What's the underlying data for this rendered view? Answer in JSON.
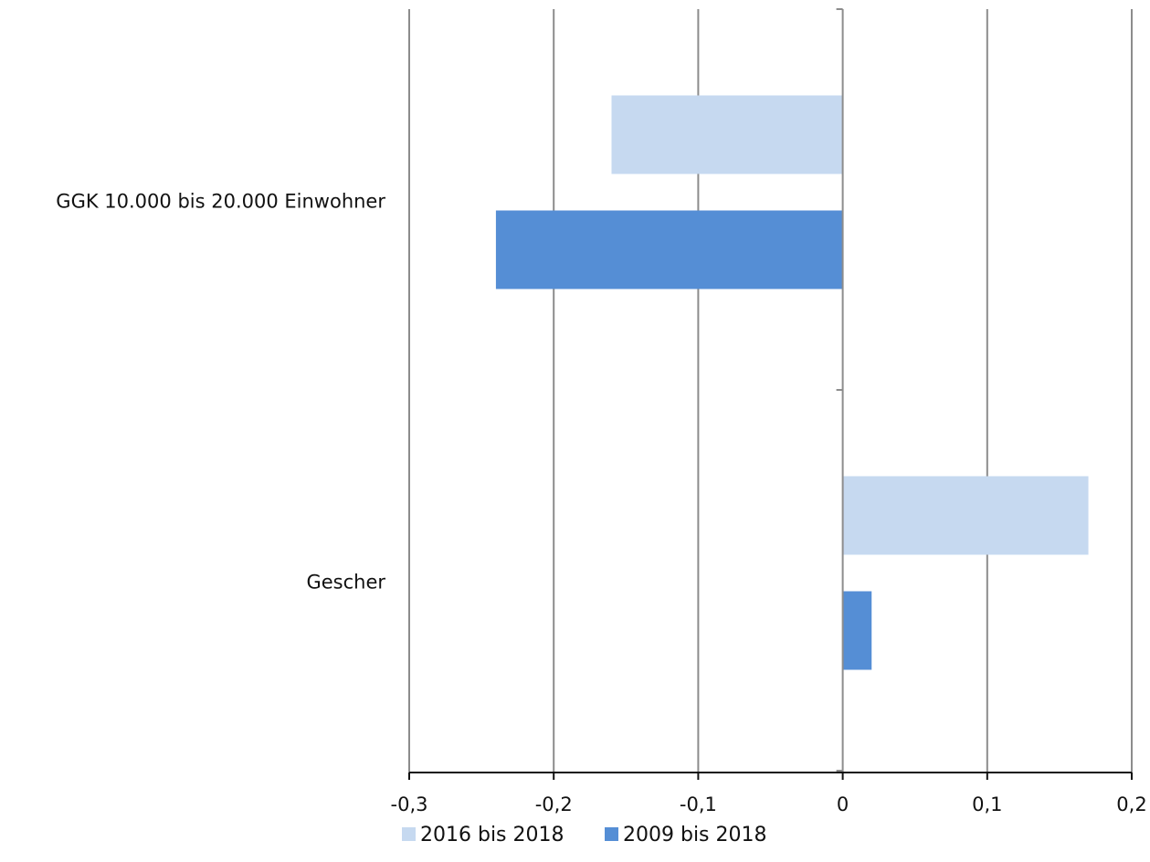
{
  "chart_data": {
    "type": "bar",
    "orientation": "horizontal",
    "title": "",
    "xlabel": "",
    "ylabel": "",
    "categories": [
      "GGK 10.000 bis 20.000 Einwohner",
      "Gescher"
    ],
    "series": [
      {
        "name": "2016 bis 2018",
        "color": "#c6d9f0",
        "values": [
          -0.16,
          0.17
        ]
      },
      {
        "name": "2009 bis 2018",
        "color": "#558ed5",
        "values": [
          -0.24,
          0.02
        ]
      }
    ],
    "xlim": [
      -0.3,
      0.2
    ],
    "xticks": [
      -0.3,
      -0.2,
      -0.1,
      0,
      0.1,
      0.2
    ],
    "xtick_labels": [
      "-0,3",
      "-0,2",
      "-0,1",
      "0",
      "0,1",
      "0,2"
    ],
    "grid": "vertical",
    "legend_position": "bottom"
  }
}
